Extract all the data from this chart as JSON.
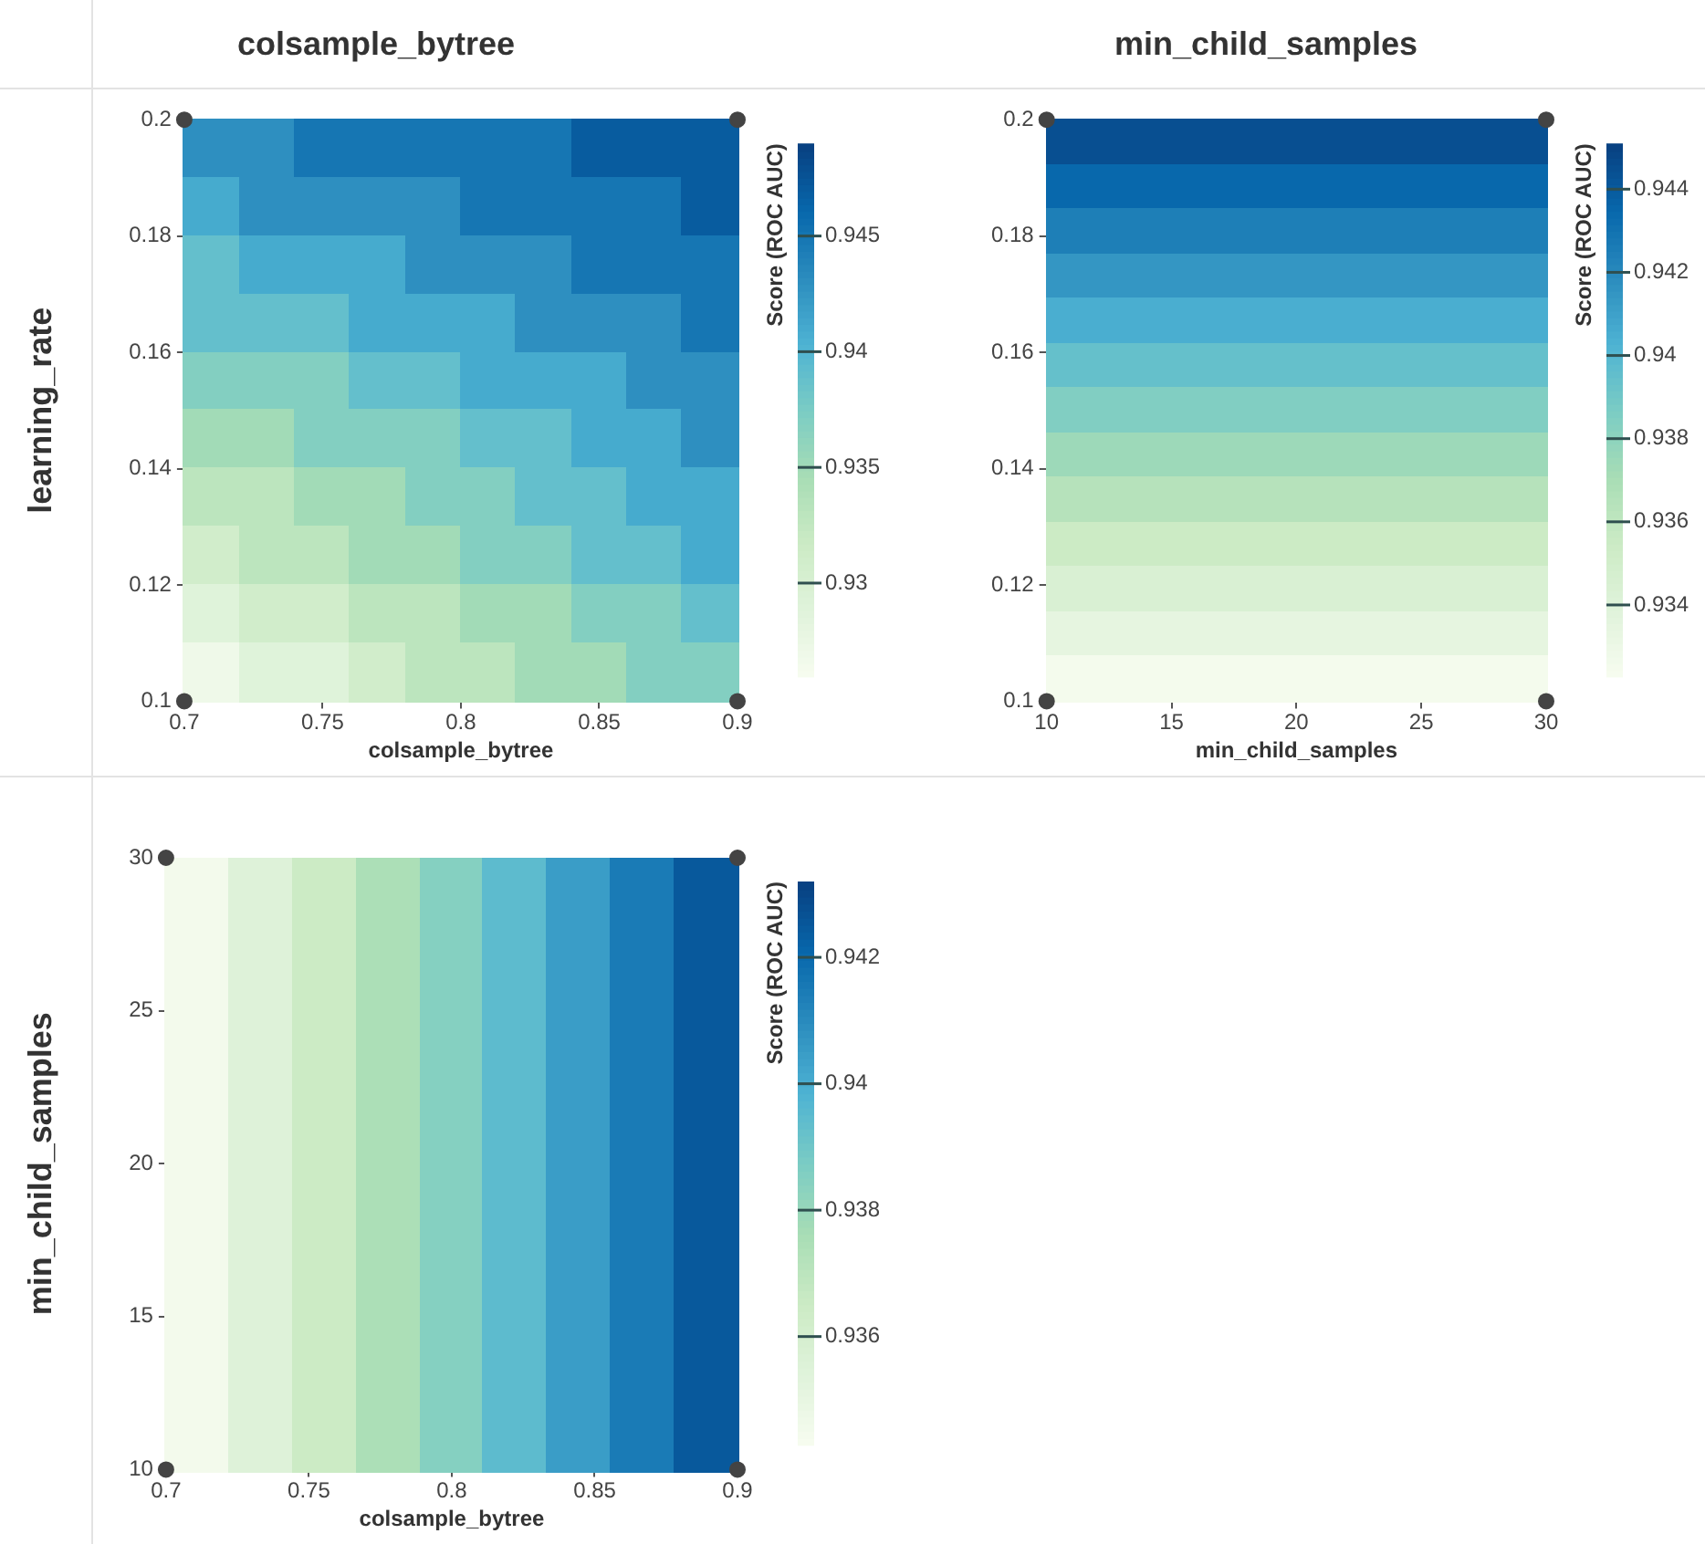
{
  "chart_data": [
    {
      "type": "heatmap",
      "title": "colsample_bytree",
      "xlabel": "colsample_bytree",
      "ylabel": "learning_rate",
      "clabel": "Score (ROC AUC)",
      "cells": [
        [
          0.943,
          0.943,
          0.945,
          0.945,
          0.945,
          0.945,
          0.945,
          0.947,
          0.947,
          0.947
        ],
        [
          0.941,
          0.943,
          0.943,
          0.943,
          0.943,
          0.945,
          0.945,
          0.945,
          0.945,
          0.947
        ],
        [
          0.939,
          0.941,
          0.941,
          0.941,
          0.943,
          0.943,
          0.943,
          0.945,
          0.945,
          0.945
        ],
        [
          0.939,
          0.939,
          0.939,
          0.941,
          0.941,
          0.941,
          0.943,
          0.943,
          0.943,
          0.945
        ],
        [
          0.937,
          0.937,
          0.937,
          0.939,
          0.939,
          0.941,
          0.941,
          0.941,
          0.943,
          0.943
        ],
        [
          0.935,
          0.935,
          0.937,
          0.937,
          0.937,
          0.939,
          0.939,
          0.941,
          0.941,
          0.943
        ],
        [
          0.933,
          0.933,
          0.935,
          0.935,
          0.937,
          0.937,
          0.939,
          0.939,
          0.941,
          0.941
        ],
        [
          0.931,
          0.933,
          0.933,
          0.935,
          0.935,
          0.937,
          0.937,
          0.939,
          0.939,
          0.941
        ],
        [
          0.929,
          0.931,
          0.931,
          0.933,
          0.933,
          0.935,
          0.935,
          0.937,
          0.937,
          0.939
        ],
        [
          0.927,
          0.929,
          0.929,
          0.931,
          0.933,
          0.933,
          0.935,
          0.935,
          0.937,
          0.937
        ]
      ],
      "clim": [
        0.926,
        0.949
      ],
      "cticks": [
        0.93,
        0.935,
        0.94,
        0.945
      ],
      "xlim": [
        0.7,
        0.9
      ],
      "xticks": [
        0.7,
        0.75,
        0.8,
        0.85,
        0.9
      ],
      "ylim": [
        0.1,
        0.2
      ],
      "yticks": [
        0.1,
        0.12,
        0.14,
        0.16,
        0.18,
        0.2
      ],
      "series": [
        {
          "type": "scatter",
          "color": "#444444",
          "x": [
            0.7,
            0.7,
            0.9,
            0.9
          ],
          "values": [
            0.1,
            0.2,
            0.1,
            0.2
          ]
        }
      ]
    },
    {
      "type": "heatmap",
      "title": "min_child_samples",
      "xlabel": "min_child_samples",
      "clabel": "Score (ROC AUC)",
      "cells": [
        [
          0.9445
        ],
        [
          0.9435
        ],
        [
          0.9425
        ],
        [
          0.9415
        ],
        [
          0.9405
        ],
        [
          0.9395
        ],
        [
          0.9385
        ],
        [
          0.9375
        ],
        [
          0.9365
        ],
        [
          0.9355
        ],
        [
          0.9345
        ],
        [
          0.9335
        ],
        [
          0.9325
        ]
      ],
      "clim": [
        0.9323,
        0.9451
      ],
      "cticks": [
        0.934,
        0.936,
        0.938,
        0.94,
        0.942,
        0.944
      ],
      "xlim": [
        10,
        30
      ],
      "xticks": [
        10,
        15,
        20,
        25,
        30
      ],
      "ylim": [
        0.1,
        0.2
      ],
      "yticks": [
        0.1,
        0.12,
        0.14,
        0.16,
        0.18,
        0.2
      ],
      "series": [
        {
          "type": "scatter",
          "color": "#444444",
          "x": [
            10,
            10,
            30,
            30
          ],
          "values": [
            0.1,
            0.2,
            0.1,
            0.2
          ]
        }
      ]
    },
    {
      "type": "heatmap",
      "xlabel": "colsample_bytree",
      "ylabel": "min_child_samples",
      "clabel": "Score (ROC AUC)",
      "cells": [
        [
          0.9345,
          0.9355,
          0.9365,
          0.9375,
          0.9385,
          0.9395,
          0.9405,
          0.9415,
          0.9425
        ]
      ],
      "clim": [
        0.9343,
        0.9432
      ],
      "cticks": [
        0.936,
        0.938,
        0.94,
        0.942
      ],
      "xlim": [
        0.7,
        0.9
      ],
      "xticks": [
        0.7,
        0.75,
        0.8,
        0.85,
        0.9
      ],
      "ylim": [
        10,
        30
      ],
      "yticks": [
        10,
        15,
        20,
        25,
        30
      ],
      "series": [
        {
          "type": "scatter",
          "color": "#444444",
          "x": [
            0.7,
            0.7,
            0.9,
            0.9
          ],
          "values": [
            10,
            30,
            10,
            30
          ]
        }
      ]
    }
  ]
}
